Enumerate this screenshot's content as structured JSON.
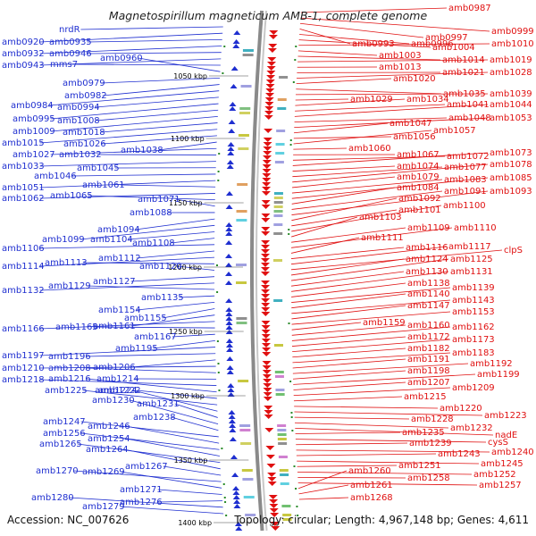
{
  "title": "Magnetospirillum magneticum AMB-1, complete genome",
  "footer": {
    "accession": "Accession: NC_007626",
    "topology": "Topology: circular; Length: 4,967,148 bp; Genes: 4,611"
  },
  "colors": {
    "left_strand": "#1f2fd0",
    "right_strand": "#e01010",
    "backbone": "#8a8a8a",
    "tick": "#2a8a2a"
  },
  "scale_marks": [
    "1050 kbp",
    "1100 kbp",
    "1150 kbp",
    "1200 kbp",
    "1250 kbp",
    "1300 kbp",
    "1350 kbp",
    "1400 kbp"
  ],
  "left_labels": [
    "nrdR",
    "amb0920",
    "amb0935",
    "amb0932",
    "amb0946",
    "amb0943",
    "mms7",
    "amb0960",
    "amb0979",
    "amb0982",
    "amb0984",
    "amb0994",
    "amb0995",
    "amb1008",
    "amb1009",
    "amb1018",
    "amb1015",
    "amb1026",
    "amb1038",
    "amb1027",
    "amb1032",
    "amb1033",
    "amb1045",
    "amb1046",
    "amb1051",
    "amb1061",
    "amb1062",
    "amb1065",
    "amb1071",
    "amb1088",
    "amb1094",
    "amb1099",
    "amb1104",
    "amb1108",
    "amb1106",
    "amb1112",
    "amb1114",
    "amb1113",
    "amb1120",
    "amb1127",
    "amb1132",
    "amb1129",
    "amb1135",
    "amb1154",
    "amb1155",
    "amb1161",
    "amb1166",
    "amb1165",
    "amb1167",
    "amb1195",
    "amb1197",
    "amb1196",
    "amb1206",
    "amb1210",
    "amb1208",
    "amb1214",
    "amb1218",
    "amb1216",
    "amb1222",
    "amb1225",
    "amb1224",
    "amb1231",
    "amb1230",
    "amb1238",
    "amb1247",
    "amb1246",
    "amb1256",
    "amb1254",
    "amb1265",
    "amb1264",
    "amb1267",
    "amb1270",
    "amb1269",
    "amb1271",
    "amb1276",
    "amb1280",
    "amb1279"
  ],
  "right_labels": [
    "amb0987",
    "amb0999",
    "amb0997",
    "amb0993",
    "amb0996",
    "amb1004",
    "amb1010",
    "amb1003",
    "amb1014",
    "amb1019",
    "amb1013",
    "amb1021",
    "amb1028",
    "amb1020",
    "amb1035",
    "amb1039",
    "amb1029",
    "amb1034",
    "amb1041",
    "amb1044",
    "amb1048",
    "amb1053",
    "amb1047",
    "amb1056",
    "amb1057",
    "amb1060",
    "amb1067",
    "amb1072",
    "amb1073",
    "amb1074",
    "amb1077",
    "amb1078",
    "amb1079",
    "amb1083",
    "amb1085",
    "amb1084",
    "amb1091",
    "amb1093",
    "amb1092",
    "amb1101",
    "amb1100",
    "amb1103",
    "amb1109",
    "amb1110",
    "amb1111",
    "amb1116",
    "amb1117",
    "clpS",
    "amb1124",
    "amb1125",
    "amb1130",
    "amb1131",
    "amb1138",
    "amb1139",
    "amb1140",
    "amb1143",
    "amb1147",
    "amb1153",
    "amb1159",
    "amb1160",
    "amb1162",
    "amb1172",
    "amb1173",
    "amb1182",
    "amb1183",
    "amb1191",
    "amb1192",
    "amb1198",
    "amb1199",
    "amb1207",
    "amb1209",
    "amb1215",
    "amb1220",
    "amb1223",
    "amb1228",
    "amb1232",
    "nadE",
    "amb1235",
    "cysS",
    "amb1239",
    "amb1240",
    "amb1243",
    "amb1245",
    "amb1251",
    "amb1252",
    "amb1258",
    "amb1257",
    "amb1260",
    "amb1261",
    "amb1268"
  ]
}
